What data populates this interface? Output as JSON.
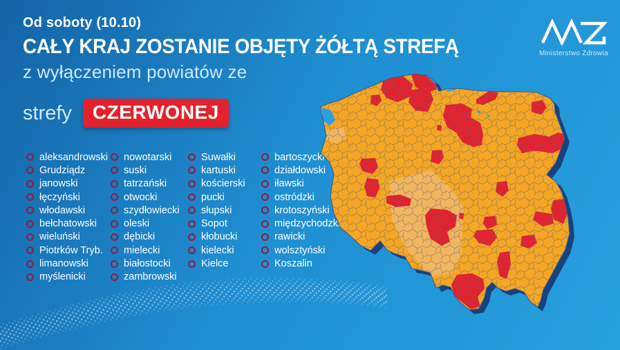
{
  "header": {
    "kicker": "Od soboty (10.10)",
    "title": "CAŁY KRAJ ZOSTANIE OBJĘTY ŻÓŁTĄ STREFĄ",
    "subtitle": "z wyłączeniem powiatów ze",
    "zone_label": "strefy",
    "zone_badge": "CZERWONEJ"
  },
  "logo": {
    "text": "Ministerstwo Zdrowia"
  },
  "counties": {
    "col1": [
      "aleksandrowski",
      "Grudziądz",
      "janowski",
      "łęczyński",
      "włodawski",
      "bełchatowski",
      "wieluński",
      "Piotrków Tryb.",
      "limanowski",
      "myślenicki"
    ],
    "col2": [
      "nowotarski",
      "suski",
      "tatrzański",
      "otwocki",
      "szydłowiecki",
      "oleski",
      "dębicki",
      "mielecki",
      "białostocki",
      "zambrowski"
    ],
    "col3": [
      "Suwałki",
      "kartuski",
      "kościerski",
      "pucki",
      "słupski",
      "Sopot",
      "kłobucki",
      "kielecki",
      "Kielce"
    ],
    "col4": [
      "bartoszycki",
      "działdowski",
      "iławski",
      "ostródzki",
      "krotoszyński",
      "międzychodzki",
      "rawicki",
      "wolsztyński",
      "Koszalin"
    ]
  },
  "map": {
    "country": "Polska",
    "legend_meaning": {
      "yellow": "żółta strefa",
      "red": "strefa czerwona"
    },
    "colors": {
      "yellow_zone": "#F5A623",
      "yellow_zone_light": "#F1B765",
      "red_zone": "#E3222E",
      "map_shadow": "#17427E",
      "sea_accent": "#2B9FE0"
    }
  },
  "background": {
    "top_left": "#1464A7",
    "middle": "#1F8FD2",
    "right": "#27A0DE"
  }
}
